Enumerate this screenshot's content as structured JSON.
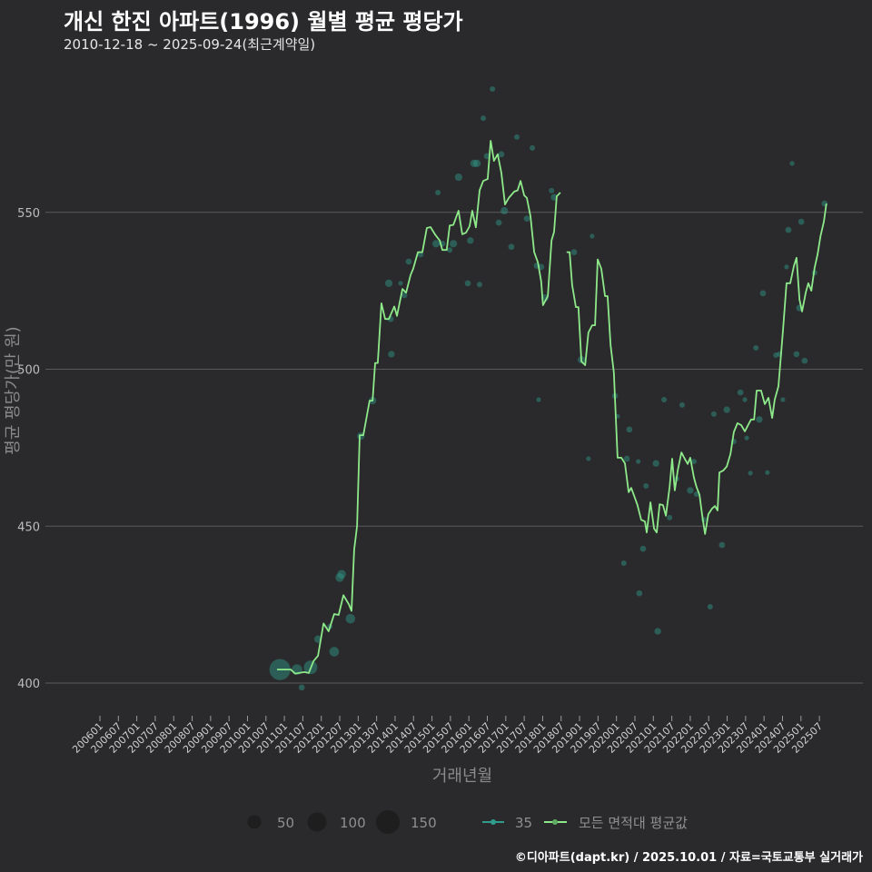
{
  "title": "개신 한진 아파트(1996) 월별 평균 평당가",
  "subtitle": "2010-12-18 ~ 2025-09-24(최근계약일)",
  "footer": "©디아파트(dapt.kr) / 2025.10.01 / 자료=국토교통부 실거래가",
  "colors": {
    "background": "#2a2a2c",
    "line": "#8ee98a",
    "scatter": "#2f9c8c",
    "grid": "#5a5a5a"
  },
  "chart_data": {
    "type": "line",
    "title": "개신 한진 아파트(1996) 월별 평균 평당가",
    "xlabel": "거래년월",
    "ylabel": "평균 평당가(만 원)",
    "xlim": [
      2005.9,
      2025.9
    ],
    "ylim": [
      385,
      598
    ],
    "yticks": [
      400,
      450,
      500,
      550
    ],
    "xticks": [
      "200601",
      "200607",
      "200701",
      "200707",
      "200801",
      "200807",
      "200901",
      "200907",
      "201001",
      "201007",
      "201101",
      "201107",
      "201201",
      "201207",
      "201301",
      "201307",
      "201401",
      "201407",
      "201501",
      "201507",
      "201601",
      "201607",
      "201701",
      "201707",
      "201801",
      "201807",
      "201901",
      "201907",
      "202001",
      "202007",
      "202101",
      "202107",
      "202201",
      "202207",
      "202301",
      "202307",
      "202401",
      "202407",
      "202501",
      "202507"
    ],
    "grid": true,
    "legend": {
      "position": "bottom",
      "size_title": "",
      "sizes": [
        {
          "label": "50",
          "value": 50
        },
        {
          "label": "100",
          "value": 100
        },
        {
          "label": "150",
          "value": 150
        }
      ],
      "series": [
        {
          "label": "35"
        },
        {
          "label": "모든 면적대 평균값"
        }
      ]
    },
    "series": [
      {
        "name": "모든 면적대 평균값",
        "type": "line",
        "points": [
          [
            2010.8,
            404.3
          ],
          [
            2011.17,
            404.3
          ],
          [
            2011.29,
            403
          ],
          [
            2011.54,
            403.5
          ],
          [
            2011.66,
            403.2
          ],
          [
            2011.79,
            407
          ],
          [
            2011.91,
            408.7
          ],
          [
            2012.06,
            419
          ],
          [
            2012.2,
            416.5
          ],
          [
            2012.35,
            422
          ],
          [
            2012.47,
            421.7
          ],
          [
            2012.6,
            428
          ],
          [
            2012.75,
            425
          ],
          [
            2012.82,
            423
          ],
          [
            2012.89,
            442.5
          ],
          [
            2012.97,
            450
          ],
          [
            2013.04,
            479
          ],
          [
            2013.14,
            479
          ],
          [
            2013.31,
            490
          ],
          [
            2013.39,
            490
          ],
          [
            2013.46,
            502
          ],
          [
            2013.53,
            502
          ],
          [
            2013.63,
            521
          ],
          [
            2013.73,
            516
          ],
          [
            2013.83,
            516
          ],
          [
            2013.98,
            520
          ],
          [
            2014.05,
            517
          ],
          [
            2014.2,
            525.6
          ],
          [
            2014.3,
            524.4
          ],
          [
            2014.42,
            530
          ],
          [
            2014.49,
            532
          ],
          [
            2014.62,
            537.3
          ],
          [
            2014.74,
            537.3
          ],
          [
            2014.86,
            545
          ],
          [
            2014.96,
            545.3
          ],
          [
            2015.08,
            543
          ],
          [
            2015.21,
            541
          ],
          [
            2015.28,
            538
          ],
          [
            2015.4,
            538
          ],
          [
            2015.48,
            545.8
          ],
          [
            2015.58,
            546
          ],
          [
            2015.72,
            550.5
          ],
          [
            2015.82,
            543
          ],
          [
            2015.92,
            543.5
          ],
          [
            2016.02,
            545.6
          ],
          [
            2016.09,
            550.5
          ],
          [
            2016.19,
            545.2
          ],
          [
            2016.29,
            557
          ],
          [
            2016.39,
            560
          ],
          [
            2016.51,
            560.6
          ],
          [
            2016.59,
            572.8
          ],
          [
            2016.68,
            566.4
          ],
          [
            2016.78,
            568.5
          ],
          [
            2016.88,
            562.7
          ],
          [
            2016.98,
            552.5
          ],
          [
            2017.08,
            554.6
          ],
          [
            2017.23,
            556.6
          ],
          [
            2017.32,
            557
          ],
          [
            2017.4,
            560
          ],
          [
            2017.5,
            555.4
          ],
          [
            2017.57,
            554.6
          ],
          [
            2017.67,
            548.8
          ],
          [
            2017.77,
            537.3
          ],
          [
            2017.87,
            534
          ],
          [
            2017.96,
            528
          ],
          [
            2018.01,
            520.4
          ],
          [
            2018.14,
            523.3
          ],
          [
            2018.24,
            541
          ],
          [
            2018.31,
            543.8
          ],
          [
            2018.38,
            555.1
          ],
          [
            2018.48,
            556.3
          ],
          null,
          [
            2018.65,
            537.3
          ],
          [
            2018.73,
            537.3
          ],
          [
            2018.8,
            526.8
          ],
          [
            2018.9,
            519.8
          ],
          [
            2018.97,
            519.8
          ],
          [
            2019.05,
            502.5
          ],
          [
            2019.15,
            501.3
          ],
          [
            2019.24,
            511.7
          ],
          [
            2019.34,
            514
          ],
          [
            2019.42,
            514
          ],
          [
            2019.49,
            535
          ],
          [
            2019.59,
            532
          ],
          [
            2019.69,
            523.3
          ],
          [
            2019.76,
            523.3
          ],
          [
            2019.84,
            507.7
          ],
          [
            2019.93,
            499
          ],
          [
            2020.03,
            471.8
          ],
          [
            2020.13,
            471.8
          ],
          [
            2020.23,
            470
          ],
          [
            2020.33,
            460.8
          ],
          [
            2020.4,
            462.2
          ],
          [
            2020.48,
            459.6
          ],
          [
            2020.57,
            456.7
          ],
          [
            2020.67,
            452
          ],
          [
            2020.77,
            451.5
          ],
          [
            2020.82,
            448
          ],
          [
            2020.92,
            457.6
          ],
          [
            2021.02,
            449.2
          ],
          [
            2021.09,
            448
          ],
          [
            2021.17,
            457
          ],
          [
            2021.26,
            456.7
          ],
          [
            2021.34,
            453.3
          ],
          [
            2021.44,
            462.5
          ],
          [
            2021.51,
            471.5
          ],
          [
            2021.58,
            461.4
          ],
          [
            2021.66,
            467.7
          ],
          [
            2021.76,
            473.5
          ],
          [
            2021.85,
            471.5
          ],
          [
            2021.93,
            469.8
          ],
          [
            2022.0,
            471.8
          ],
          [
            2022.1,
            465.4
          ],
          [
            2022.17,
            462.5
          ],
          [
            2022.25,
            460
          ],
          [
            2022.32,
            453.8
          ],
          [
            2022.4,
            447.5
          ],
          [
            2022.49,
            453.8
          ],
          [
            2022.59,
            455.6
          ],
          [
            2022.67,
            456.4
          ],
          [
            2022.74,
            455
          ],
          [
            2022.79,
            467.1
          ],
          [
            2022.89,
            467.7
          ],
          [
            2022.99,
            469
          ],
          [
            2023.09,
            473
          ],
          [
            2023.18,
            480
          ],
          [
            2023.28,
            482.8
          ],
          [
            2023.38,
            482.2
          ],
          [
            2023.48,
            480.2
          ],
          [
            2023.58,
            482.5
          ],
          [
            2023.65,
            484
          ],
          [
            2023.73,
            484
          ],
          [
            2023.8,
            493.2
          ],
          [
            2023.92,
            493.2
          ],
          [
            2024.02,
            488.9
          ],
          [
            2024.12,
            490.9
          ],
          [
            2024.22,
            484.5
          ],
          [
            2024.29,
            490.3
          ],
          [
            2024.39,
            494.6
          ],
          [
            2024.51,
            512
          ],
          [
            2024.61,
            527.4
          ],
          [
            2024.71,
            527.4
          ],
          [
            2024.81,
            533
          ],
          [
            2024.88,
            535.5
          ],
          [
            2024.96,
            522.1
          ],
          [
            2025.03,
            518.4
          ],
          [
            2025.13,
            524.5
          ],
          [
            2025.2,
            527.4
          ],
          [
            2025.28,
            525
          ],
          [
            2025.37,
            532.3
          ],
          [
            2025.45,
            536.6
          ],
          [
            2025.53,
            542.4
          ],
          [
            2025.62,
            547
          ],
          [
            2025.69,
            552.8
          ]
        ]
      },
      {
        "name": "35",
        "type": "scatter",
        "points": [
          [
            2010.88,
            404.3,
            120
          ],
          [
            2011.34,
            404.3,
            30
          ],
          [
            2011.71,
            405,
            50
          ],
          [
            2011.47,
            398.6,
            10
          ],
          [
            2011.91,
            414,
            15
          ],
          [
            2012.23,
            418,
            8
          ],
          [
            2012.35,
            410,
            25
          ],
          [
            2012.5,
            433.6,
            20
          ],
          [
            2012.55,
            434.7,
            20
          ],
          [
            2012.79,
            420.5,
            25
          ],
          [
            2013.07,
            478.7,
            15
          ],
          [
            2013.39,
            490,
            15
          ],
          [
            2013.83,
            527.4,
            15
          ],
          [
            2013.88,
            516,
            10
          ],
          [
            2013.9,
            504.8,
            12
          ],
          [
            2014.15,
            527.4,
            6
          ],
          [
            2014.25,
            523.6,
            10
          ],
          [
            2014.37,
            534.3,
            10
          ],
          [
            2014.69,
            536.6,
            10
          ],
          [
            2015.11,
            540,
            15
          ],
          [
            2015.16,
            556.3,
            8
          ],
          [
            2015.28,
            540,
            10
          ],
          [
            2015.48,
            538,
            8
          ],
          [
            2015.58,
            540,
            15
          ],
          [
            2015.72,
            561.2,
            15
          ],
          [
            2015.97,
            527.4,
            10
          ],
          [
            2016.04,
            541,
            12
          ],
          [
            2016.14,
            565.6,
            15
          ],
          [
            2016.22,
            565.6,
            15
          ],
          [
            2016.29,
            527,
            8
          ],
          [
            2016.39,
            580,
            8
          ],
          [
            2016.49,
            567.9,
            10
          ],
          [
            2016.64,
            589.3,
            8
          ],
          [
            2016.81,
            546.7,
            10
          ],
          [
            2016.88,
            568.5,
            10
          ],
          [
            2016.96,
            550.5,
            15
          ],
          [
            2017.15,
            539,
            10
          ],
          [
            2017.3,
            574,
            8
          ],
          [
            2017.57,
            548,
            10
          ],
          [
            2017.72,
            570.5,
            8
          ],
          [
            2017.84,
            533,
            10
          ],
          [
            2017.89,
            490.3,
            6
          ],
          [
            2017.96,
            532.6,
            10
          ],
          [
            2018.06,
            522.7,
            15
          ],
          [
            2018.24,
            556.9,
            8
          ],
          [
            2018.31,
            554.8,
            12
          ],
          [
            2018.85,
            537.3,
            10
          ],
          [
            2019.05,
            503,
            15
          ],
          [
            2019.24,
            471.5,
            6
          ],
          [
            2019.34,
            542.4,
            6
          ],
          [
            2019.96,
            491.5,
            10
          ],
          [
            2020.03,
            485,
            6
          ],
          [
            2020.2,
            438.2,
            8
          ],
          [
            2020.28,
            471.5,
            10
          ],
          [
            2020.35,
            480.8,
            10
          ],
          [
            2020.59,
            470.6,
            6
          ],
          [
            2020.62,
            428.6,
            10
          ],
          [
            2020.72,
            442.8,
            10
          ],
          [
            2020.8,
            462.8,
            8
          ],
          [
            2021.07,
            470,
            12
          ],
          [
            2021.12,
            416.5,
            12
          ],
          [
            2021.29,
            490.3,
            8
          ],
          [
            2021.44,
            452.7,
            8
          ],
          [
            2021.63,
            465.1,
            8
          ],
          [
            2021.78,
            488.6,
            8
          ],
          [
            2022.0,
            461.4,
            12
          ],
          [
            2022.1,
            470.6,
            8
          ],
          [
            2022.17,
            460.2,
            8
          ],
          [
            2022.37,
            452.1,
            8
          ],
          [
            2022.54,
            424.3,
            8
          ],
          [
            2022.64,
            485.7,
            8
          ],
          [
            2022.86,
            444,
            10
          ],
          [
            2022.99,
            487.1,
            12
          ],
          [
            2023.18,
            477,
            8
          ],
          [
            2023.36,
            492.6,
            10
          ],
          [
            2023.48,
            490.3,
            6
          ],
          [
            2023.53,
            478.1,
            6
          ],
          [
            2023.63,
            466.9,
            6
          ],
          [
            2023.78,
            506.8,
            8
          ],
          [
            2023.87,
            484,
            12
          ],
          [
            2023.97,
            524.2,
            10
          ],
          [
            2024.09,
            467.1,
            6
          ],
          [
            2024.32,
            504.5,
            8
          ],
          [
            2024.42,
            504.8,
            8
          ],
          [
            2024.51,
            490.3,
            6
          ],
          [
            2024.61,
            532.6,
            6
          ],
          [
            2024.66,
            544.4,
            10
          ],
          [
            2024.76,
            565.6,
            6
          ],
          [
            2024.88,
            504.8,
            10
          ],
          [
            2024.96,
            519.5,
            12
          ],
          [
            2025.01,
            547,
            10
          ],
          [
            2025.1,
            502.7,
            10
          ],
          [
            2025.37,
            530.8,
            8
          ],
          [
            2025.64,
            552.8,
            10
          ]
        ]
      }
    ]
  }
}
